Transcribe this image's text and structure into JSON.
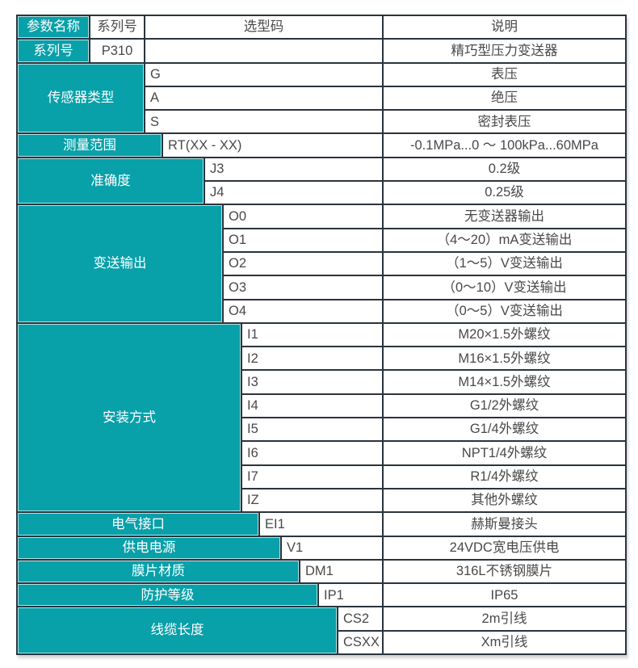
{
  "colors": {
    "teal": "#08a0a9",
    "border": "#2b343c",
    "text": "#494949",
    "label_text": "#ffffff"
  },
  "table": {
    "header": {
      "param_name": "参数名称",
      "series_no": "系列号",
      "selection_code": "选型码",
      "description": "说明"
    },
    "groups": [
      {
        "label": "系列号",
        "rows": [
          {
            "code": "P310",
            "desc": "精巧型压力变送器"
          }
        ]
      },
      {
        "label": "传感器类型",
        "rows": [
          {
            "code": "G",
            "desc": "表压"
          },
          {
            "code": "A",
            "desc": "绝压"
          },
          {
            "code": "S",
            "desc": "密封表压"
          }
        ]
      },
      {
        "label": "测量范围",
        "rows": [
          {
            "code": "RT(XX - XX)",
            "desc": "-0.1MPa...0 ～ 100kPa...60MPa"
          }
        ]
      },
      {
        "label": "准确度",
        "rows": [
          {
            "code": "J3",
            "desc": "0.2级"
          },
          {
            "code": "J4",
            "desc": "0.25级"
          }
        ]
      },
      {
        "label": "变送输出",
        "rows": [
          {
            "code": "O0",
            "desc": "无变送器输出"
          },
          {
            "code": "O1",
            "desc": "（4～20）mA变送输出"
          },
          {
            "code": "O2",
            "desc": "（1～5）V变送输出"
          },
          {
            "code": "O3",
            "desc": "（0～10）V变送输出"
          },
          {
            "code": "O4",
            "desc": "（0～5）V变送输出"
          }
        ]
      },
      {
        "label": "安装方式",
        "rows": [
          {
            "code": "I1",
            "desc": "M20×1.5外螺纹"
          },
          {
            "code": "I2",
            "desc": "M16×1.5外螺纹"
          },
          {
            "code": "I3",
            "desc": "M14×1.5外螺纹"
          },
          {
            "code": "I4",
            "desc": "G1/2外螺纹"
          },
          {
            "code": "I5",
            "desc": "G1/4外螺纹"
          },
          {
            "code": "I6",
            "desc": "NPT1/4外螺纹"
          },
          {
            "code": "I7",
            "desc": "R1/4外螺纹"
          },
          {
            "code": "IZ",
            "desc": "其他外螺纹"
          }
        ]
      },
      {
        "label": "电气接口",
        "rows": [
          {
            "code": "EI1",
            "desc": "赫斯曼接头"
          }
        ]
      },
      {
        "label": "供电电源",
        "rows": [
          {
            "code": "V1",
            "desc": "24VDC宽电压供电"
          }
        ]
      },
      {
        "label": "膜片材质",
        "rows": [
          {
            "code": "DM1",
            "desc": "316L不锈钢膜片"
          }
        ]
      },
      {
        "label": "防护等级",
        "rows": [
          {
            "code": "IP1",
            "desc": "IP65"
          }
        ]
      },
      {
        "label": "线缆长度",
        "rows": [
          {
            "code": "CS2",
            "desc": "2m引线"
          },
          {
            "code": "CSXX",
            "desc": "Xm引线"
          }
        ]
      }
    ]
  }
}
